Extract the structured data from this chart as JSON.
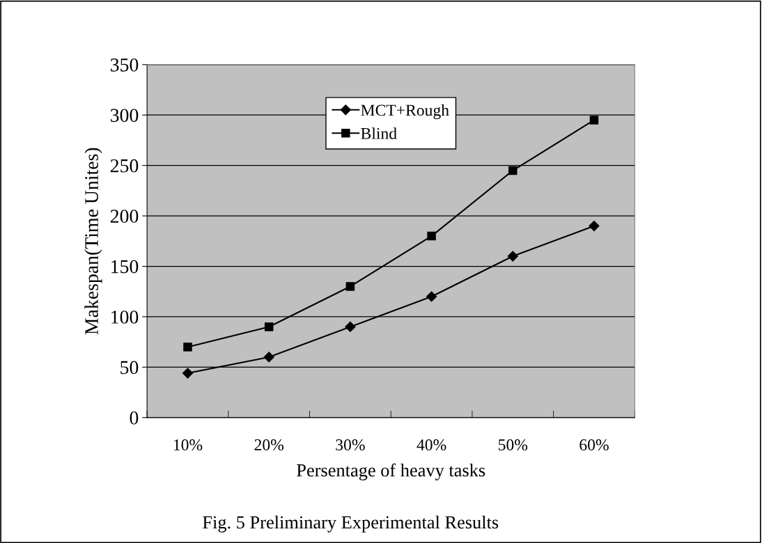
{
  "chart_data": {
    "type": "line",
    "xlabel": "Persentage of heavy tasks",
    "ylabel": "Makespan(Time Unites)",
    "categories": [
      "10%",
      "20%",
      "30%",
      "40%",
      "50%",
      "60%"
    ],
    "series": [
      {
        "name": "MCT+Rough",
        "color": "#000000",
        "marker": "diamond",
        "values": [
          44,
          60,
          90,
          120,
          160,
          190
        ]
      },
      {
        "name": "Blind",
        "color": "#000000",
        "marker": "square",
        "values": [
          70,
          90,
          130,
          180,
          245,
          295
        ]
      }
    ],
    "ylim": [
      0,
      350
    ],
    "yticks": [
      0,
      50,
      100,
      150,
      200,
      250,
      300,
      350
    ],
    "grid": "y",
    "legend": "top",
    "line_style": "solid",
    "annotations": [
      "Fig. 5 Preliminary Experimental Results"
    ]
  }
}
